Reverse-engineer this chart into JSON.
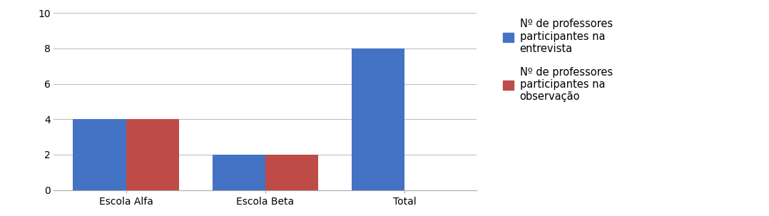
{
  "categories": [
    "Escola Alfa",
    "Escola Beta",
    "Total"
  ],
  "series1_values": [
    4,
    2,
    8
  ],
  "series2_values": [
    4,
    2,
    0
  ],
  "series1_color": "#4472C4",
  "series2_color": "#BE4B48",
  "series1_label": "Nº de professores\nparticipantes na\nentrevista",
  "series2_label": "Nº de professores\nparticipantes na\nobservação",
  "ylim": [
    0,
    10
  ],
  "yticks": [
    0,
    2,
    4,
    6,
    8,
    10
  ],
  "bar_width": 0.38,
  "background_color": "#ffffff",
  "grid_color": "#bfbfbf",
  "tick_fontsize": 10,
  "legend_fontsize": 10.5,
  "figsize": [
    10.78,
    3.03
  ],
  "dpi": 100
}
